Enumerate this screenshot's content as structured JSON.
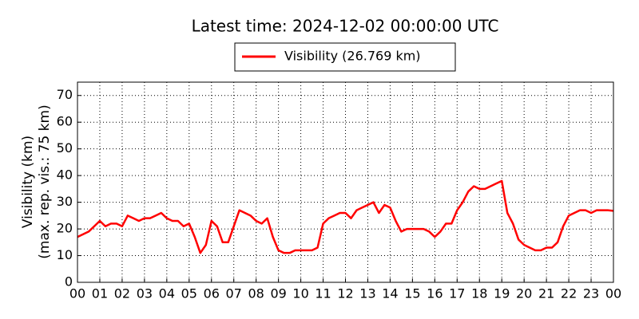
{
  "chart_data": {
    "type": "line",
    "title": "Latest time: 2024-12-02 00:00:00 UTC",
    "ylabel": [
      "Visibility (km)",
      "(max. rep. vis.: 75 km)"
    ],
    "x": [
      0,
      0.25,
      0.5,
      0.75,
      1,
      1.25,
      1.5,
      1.75,
      2,
      2.25,
      2.5,
      2.75,
      3,
      3.25,
      3.5,
      3.75,
      4,
      4.25,
      4.5,
      4.75,
      5,
      5.25,
      5.5,
      5.75,
      6,
      6.25,
      6.5,
      6.75,
      7,
      7.25,
      7.5,
      7.75,
      8,
      8.25,
      8.5,
      8.75,
      9,
      9.25,
      9.5,
      9.75,
      10,
      10.25,
      10.5,
      10.75,
      11,
      11.25,
      11.5,
      11.75,
      12,
      12.25,
      12.5,
      12.75,
      13,
      13.25,
      13.5,
      13.75,
      14,
      14.25,
      14.5,
      14.75,
      15,
      15.25,
      15.5,
      15.75,
      16,
      16.25,
      16.5,
      16.75,
      17,
      17.25,
      17.5,
      17.75,
      18,
      18.25,
      18.5,
      18.75,
      19,
      19.25,
      19.5,
      19.75,
      20,
      20.25,
      20.5,
      20.75,
      21,
      21.25,
      21.5,
      21.75,
      22,
      22.25,
      22.5,
      22.75,
      23,
      23.25,
      23.5,
      23.75,
      24
    ],
    "series": [
      {
        "name": "Visibility (26.769 km)",
        "color": "#ff0000",
        "values": [
          17,
          18,
          19,
          21,
          23,
          21,
          22,
          22,
          21,
          25,
          24,
          23,
          24,
          24,
          25,
          26,
          24,
          23,
          23,
          21,
          22,
          17,
          11,
          14,
          23,
          21,
          15,
          15,
          21,
          27,
          26,
          25,
          23,
          22,
          24,
          17,
          12,
          11,
          11,
          12,
          12,
          12,
          12,
          13,
          22,
          24,
          25,
          26,
          26,
          24,
          27,
          28,
          29,
          30,
          26,
          29,
          28,
          23,
          19,
          20,
          20,
          20,
          20,
          19,
          17,
          19,
          22,
          22,
          27,
          30,
          34,
          36,
          35,
          35,
          36,
          37,
          38,
          26,
          22,
          16,
          14,
          13,
          12,
          12,
          13,
          13,
          15,
          21,
          25,
          26,
          27,
          27,
          26,
          27,
          27,
          27,
          26.769
        ]
      }
    ],
    "xlim": [
      0,
      24
    ],
    "ylim": [
      0,
      75
    ],
    "xticks": [
      {
        "value": 0,
        "label": "00"
      },
      {
        "value": 1,
        "label": "01"
      },
      {
        "value": 2,
        "label": "02"
      },
      {
        "value": 3,
        "label": "03"
      },
      {
        "value": 4,
        "label": "04"
      },
      {
        "value": 5,
        "label": "05"
      },
      {
        "value": 6,
        "label": "06"
      },
      {
        "value": 7,
        "label": "07"
      },
      {
        "value": 8,
        "label": "08"
      },
      {
        "value": 9,
        "label": "09"
      },
      {
        "value": 10,
        "label": "10"
      },
      {
        "value": 11,
        "label": "11"
      },
      {
        "value": 12,
        "label": "12"
      },
      {
        "value": 13,
        "label": "13"
      },
      {
        "value": 14,
        "label": "14"
      },
      {
        "value": 15,
        "label": "15"
      },
      {
        "value": 16,
        "label": "16"
      },
      {
        "value": 17,
        "label": "17"
      },
      {
        "value": 18,
        "label": "18"
      },
      {
        "value": 19,
        "label": "19"
      },
      {
        "value": 20,
        "label": "20"
      },
      {
        "value": 21,
        "label": "21"
      },
      {
        "value": 22,
        "label": "22"
      },
      {
        "value": 23,
        "label": "23"
      },
      {
        "value": 24,
        "label": "00"
      }
    ],
    "yticks": [
      0,
      10,
      20,
      30,
      40,
      50,
      60,
      70
    ],
    "grid": true
  }
}
